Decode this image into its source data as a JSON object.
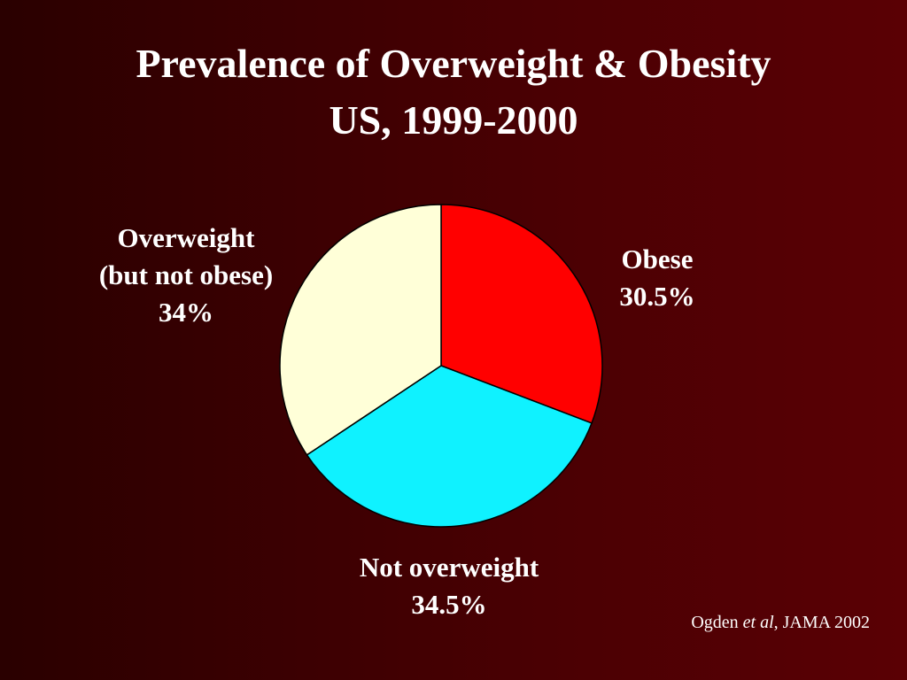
{
  "chart_data": {
    "type": "pie",
    "title": "Prevalence of Overweight & Obesity",
    "subtitle": "US, 1999-2000",
    "slices": [
      {
        "label": "Obese",
        "value": 30.5,
        "value_label": "30.5%",
        "color": "#ff0000"
      },
      {
        "label": "Not overweight",
        "value": 34.5,
        "value_label": "34.5%",
        "color": "#0ff2ff"
      },
      {
        "label": "Overweight",
        "sublabel": "(but not obese)",
        "value": 34,
        "value_label": "34%",
        "color": "#ffffd8"
      }
    ],
    "start_angle": "12 o'clock",
    "direction": "clockwise"
  },
  "citation": {
    "author": "Ogden",
    "et_al": "et al",
    "rest": ", JAMA 2002"
  },
  "colors": {
    "background": "#4a0003",
    "text": "#ffffff",
    "slice_outline": "#000000"
  }
}
